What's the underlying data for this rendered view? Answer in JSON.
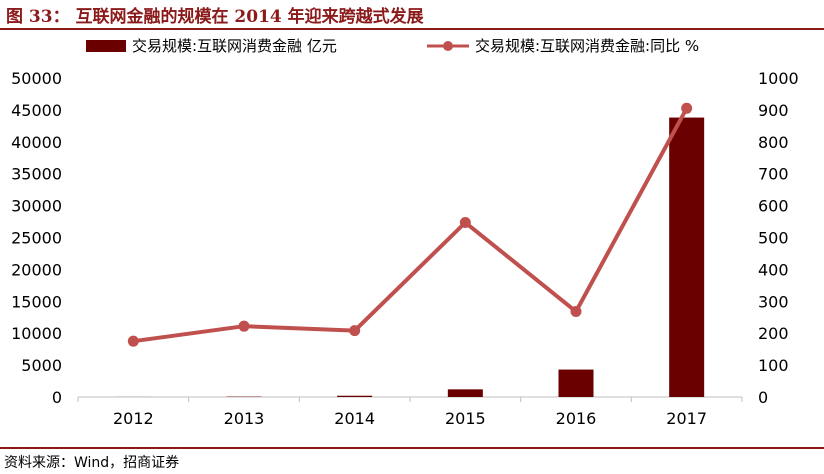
{
  "title": "图 33：  互联网金融的规模在 2014 年迎来跨越式发展",
  "source": "资料来源：Wind，招商证券",
  "colors": {
    "bar": "#6b0000",
    "line": "#c0504d",
    "accent": "#8b1a1a"
  },
  "chart_data": {
    "type": "bar",
    "categories": [
      "2012",
      "2013",
      "2014",
      "2015",
      "2016",
      "2017"
    ],
    "series": [
      {
        "name": "交易规模:互联网消费金融 亿元",
        "type": "bar",
        "axis": "left",
        "values": [
          10,
          60,
          200,
          1200,
          4300,
          43800
        ]
      },
      {
        "name": "交易规模:互联网消费金融:同比 %",
        "type": "line",
        "axis": "right",
        "values": [
          175,
          222,
          208,
          547,
          268,
          905
        ]
      }
    ],
    "ylim_left": [
      0,
      50000
    ],
    "yticks_left": [
      "0",
      "5000",
      "10000",
      "15000",
      "20000",
      "25000",
      "30000",
      "35000",
      "40000",
      "45000",
      "50000"
    ],
    "ylim_right": [
      0,
      1000
    ],
    "yticks_right": [
      "0",
      "100",
      "200",
      "300",
      "400",
      "500",
      "600",
      "700",
      "800",
      "900",
      "1000"
    ],
    "legend_position": "top",
    "grid": false
  }
}
